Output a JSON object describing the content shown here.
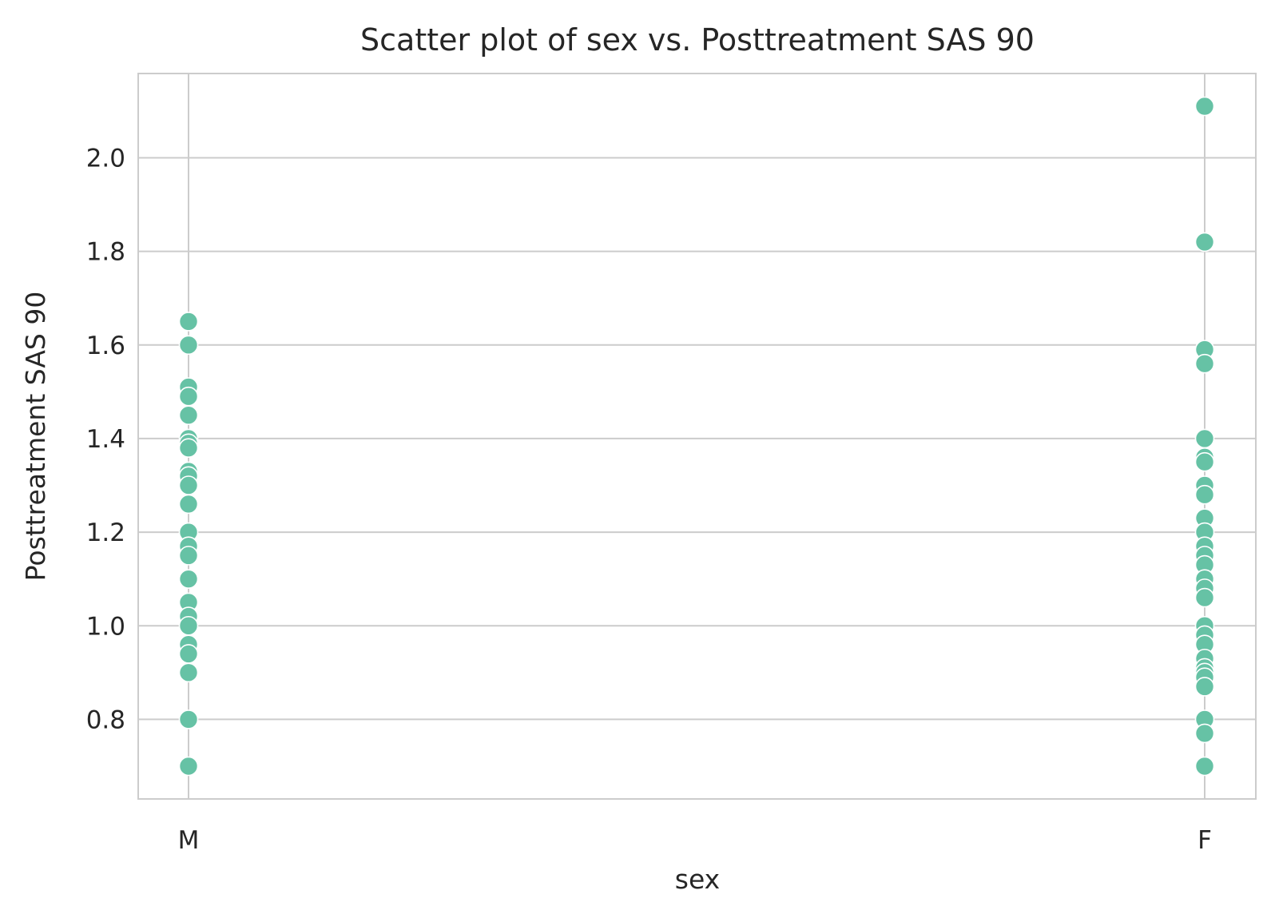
{
  "chart_data": {
    "type": "scatter",
    "title": "Scatter plot of sex vs. Posttreatment SAS 90",
    "xlabel": "sex",
    "ylabel": "Posttreatment SAS 90",
    "categories": [
      "M",
      "F"
    ],
    "yticks": [
      "0.8",
      "1.0",
      "1.2",
      "1.4",
      "1.6",
      "1.8",
      "2.0"
    ],
    "ylim": [
      0.63,
      2.18
    ],
    "grid": true,
    "point_color": "#66c2a5",
    "series": [
      {
        "category": "M",
        "values": [
          1.65,
          1.6,
          1.51,
          1.49,
          1.45,
          1.4,
          1.39,
          1.38,
          1.33,
          1.32,
          1.3,
          1.26,
          1.2,
          1.17,
          1.15,
          1.1,
          1.05,
          1.02,
          1.0,
          0.96,
          0.94,
          0.9,
          0.8,
          0.7
        ]
      },
      {
        "category": "F",
        "values": [
          2.11,
          1.82,
          1.59,
          1.56,
          1.4,
          1.36,
          1.35,
          1.3,
          1.28,
          1.23,
          1.2,
          1.17,
          1.15,
          1.13,
          1.1,
          1.08,
          1.06,
          1.0,
          0.98,
          0.96,
          0.93,
          0.91,
          0.9,
          0.89,
          0.87,
          0.8,
          0.77,
          0.7
        ]
      }
    ]
  }
}
